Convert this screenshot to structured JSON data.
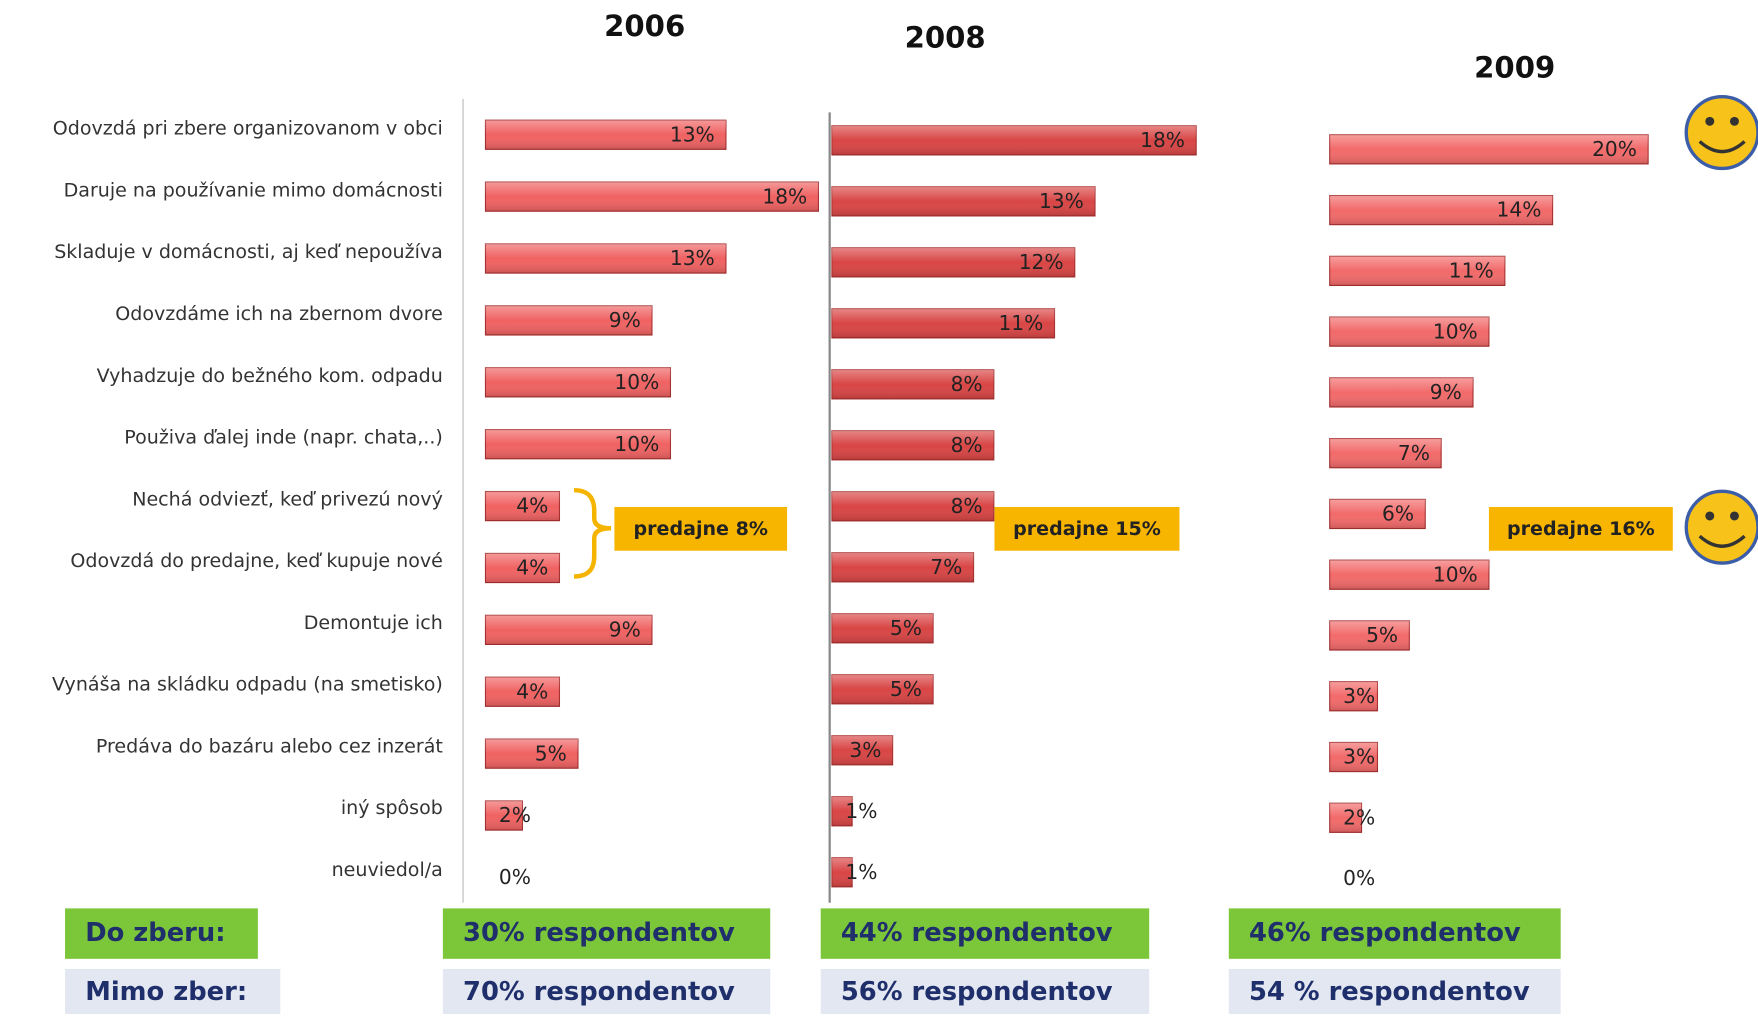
{
  "chart_data": {
    "type": "bar",
    "categories": [
      "Odovzdá pri zbere organizovanom v obci",
      "Daruje na používanie mimo domácnosti",
      "Skladuje v domácnosti, aj keď nepoužíva",
      "Odovzdáme ich na zbernom dvore",
      "Vyhadzuje do bežného kom. odpadu",
      "Použiva ďalej inde (napr. chata,..)",
      "Nechá odviezť, keď privezú nový",
      "Odovzdá do predajne, keď kupuje nové",
      "Demontuje ich",
      "Vynáša na skládku odpadu (na smetisko)",
      "Predáva do bazáru alebo cez inzerát",
      "iný spôsob",
      "neuviedol/a"
    ],
    "series": [
      {
        "name": "2006",
        "color": "#f06262",
        "xlim": [
          0,
          20
        ],
        "values": [
          13,
          18,
          13,
          9,
          10,
          10,
          4,
          4,
          9,
          4,
          5,
          2,
          0
        ],
        "value_labels": [
          "13%",
          "18%",
          "13%",
          "9%",
          "10%",
          "10%",
          "4%",
          "4%",
          "9%",
          "4%",
          "5%",
          "2%",
          "0%"
        ],
        "annotation": "predajne 8%"
      },
      {
        "name": "2008",
        "color": "#d94545",
        "xlim": [
          0,
          20
        ],
        "values": [
          18,
          13,
          12,
          11,
          8,
          8,
          8,
          7,
          5,
          5,
          3,
          1,
          1
        ],
        "value_labels": [
          "18%",
          "13%",
          "12%",
          "11%",
          "8%",
          "8%",
          "8%",
          "7%",
          "5%",
          "5%",
          "3%",
          "1%",
          "1%"
        ],
        "annotation": "predajne 15%"
      },
      {
        "name": "2009",
        "color": "#f26a6a",
        "xlim": [
          0,
          20
        ],
        "values": [
          20,
          14,
          11,
          10,
          9,
          7,
          6,
          10,
          5,
          3,
          3,
          2,
          0
        ],
        "value_labels": [
          "20%",
          "14%",
          "11%",
          "10%",
          "9%",
          "7%",
          "6%",
          "10%",
          "5%",
          "3%",
          "3%",
          "2%",
          "0%"
        ],
        "annotation": "predajne 16%"
      }
    ],
    "summary": [
      {
        "label": "Do zberu:",
        "cells": [
          "30% respondentov",
          "44% respondentov",
          "46% respondentov"
        ]
      },
      {
        "label": "Mimo zber:",
        "cells": [
          "70% respondentov",
          "56% respondentov",
          "54 % respondentov"
        ]
      }
    ]
  }
}
